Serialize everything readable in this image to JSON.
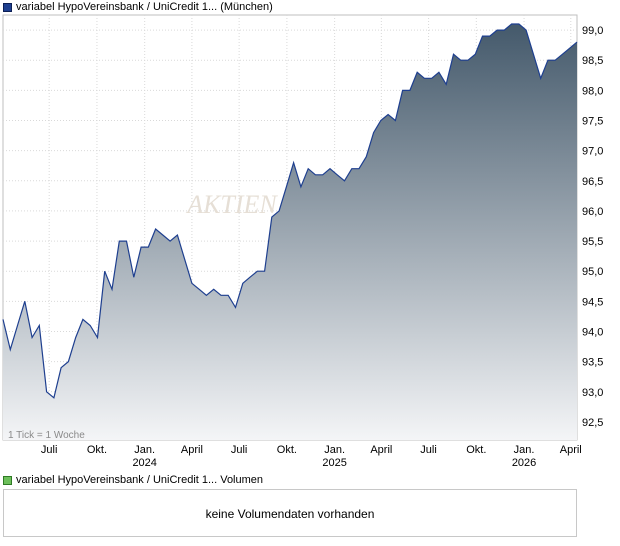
{
  "price_legend": {
    "label": "variabel HypoVereinsbank / UniCredit 1... (München)",
    "color": "#1e3f8f"
  },
  "volume_legend": {
    "label": "variabel HypoVereinsbank / UniCredit 1... Volumen",
    "color": "#6cbf5a"
  },
  "volume_panel": {
    "message": "keine Volumendaten vorhanden"
  },
  "chart_data": {
    "type": "area",
    "tick_note": "1 Tick = 1 Woche",
    "watermark": "AKTIEN",
    "ylim": [
      92.2,
      99.25
    ],
    "y_ticks": [
      "92,5",
      "93,0",
      "93,5",
      "94,0",
      "94,5",
      "95,0",
      "95,5",
      "96,0",
      "96,5",
      "97,0",
      "97,5",
      "98,0",
      "98,5",
      "99,0"
    ],
    "x_ticks": [
      {
        "label": "Juli",
        "year": "",
        "x": "2023-07-01"
      },
      {
        "label": "Okt.",
        "year": "",
        "x": "2023-10-01"
      },
      {
        "label": "Jan.",
        "year": "2024",
        "x": "2024-01-01"
      },
      {
        "label": "April",
        "year": "",
        "x": "2024-04-01"
      },
      {
        "label": "Juli",
        "year": "",
        "x": "2024-07-01"
      },
      {
        "label": "Okt.",
        "year": "",
        "x": "2024-10-01"
      },
      {
        "label": "Jan.",
        "year": "2025",
        "x": "2025-01-01"
      },
      {
        "label": "April",
        "year": "",
        "x": "2025-04-01"
      },
      {
        "label": "Juli",
        "year": "",
        "x": "2025-07-01"
      },
      {
        "label": "Okt.",
        "year": "",
        "x": "2025-10-01"
      },
      {
        "label": "Jan.",
        "year": "2026",
        "x": "2026-01-01"
      },
      {
        "label": "April",
        "year": "",
        "x": "2026-04-01"
      }
    ],
    "x_range": [
      "2023-04-03",
      "2026-04-13"
    ],
    "colors": {
      "line": "#1e3f8f",
      "fill_top": "#44596b",
      "fill_bottom": "#f4f5f7"
    },
    "series": [
      {
        "x": [
          "2023-04-03",
          "2023-04-17",
          "2023-05-01",
          "2023-05-15",
          "2023-05-29",
          "2023-06-12",
          "2023-06-26",
          "2023-07-10",
          "2023-07-24",
          "2023-08-07",
          "2023-08-21",
          "2023-09-04",
          "2023-09-18",
          "2023-10-02",
          "2023-10-16",
          "2023-10-30",
          "2023-11-13",
          "2023-11-27",
          "2023-12-11",
          "2023-12-25",
          "2024-01-08",
          "2024-01-22",
          "2024-02-05",
          "2024-02-19",
          "2024-03-04",
          "2024-03-18",
          "2024-04-01",
          "2024-04-15",
          "2024-04-29",
          "2024-05-13",
          "2024-05-27",
          "2024-06-10",
          "2024-06-24",
          "2024-07-08",
          "2024-07-22",
          "2024-08-05",
          "2024-08-19",
          "2024-09-02",
          "2024-09-16",
          "2024-09-30",
          "2024-10-14",
          "2024-10-28",
          "2024-11-11",
          "2024-11-25",
          "2024-12-09",
          "2024-12-23",
          "2025-01-06",
          "2025-01-20",
          "2025-02-03",
          "2025-02-17",
          "2025-03-03",
          "2025-03-17",
          "2025-03-31",
          "2025-04-14",
          "2025-04-28",
          "2025-05-12",
          "2025-05-26",
          "2025-06-09",
          "2025-06-23",
          "2025-07-07",
          "2025-07-21",
          "2025-08-04",
          "2025-08-18",
          "2025-09-01",
          "2025-09-15",
          "2025-09-29",
          "2025-10-13",
          "2025-10-27",
          "2025-11-10",
          "2025-11-24",
          "2025-12-08",
          "2025-12-22",
          "2026-01-05",
          "2026-01-19",
          "2026-02-02",
          "2026-02-16",
          "2026-03-02",
          "2026-03-16",
          "2026-03-30",
          "2026-04-13"
        ],
        "values": [
          94.2,
          93.7,
          94.1,
          94.5,
          93.9,
          94.1,
          93.0,
          92.9,
          93.4,
          93.5,
          93.9,
          94.2,
          94.1,
          93.9,
          95.0,
          94.7,
          95.5,
          95.5,
          94.9,
          95.4,
          95.4,
          95.7,
          95.6,
          95.5,
          95.6,
          95.2,
          94.8,
          94.7,
          94.6,
          94.7,
          94.6,
          94.6,
          94.4,
          94.8,
          94.9,
          95.0,
          95.0,
          95.9,
          96.0,
          96.4,
          96.8,
          96.4,
          96.7,
          96.6,
          96.6,
          96.7,
          96.6,
          96.5,
          96.7,
          96.7,
          96.9,
          97.3,
          97.5,
          97.6,
          97.5,
          98.0,
          98.0,
          98.3,
          98.2,
          98.2,
          98.3,
          98.1,
          98.6,
          98.5,
          98.5,
          98.6,
          98.9,
          98.9,
          99.0,
          99.0,
          99.1,
          99.1,
          99.0,
          98.6,
          98.2,
          98.5,
          98.5,
          98.6,
          98.7,
          98.8
        ]
      }
    ]
  }
}
